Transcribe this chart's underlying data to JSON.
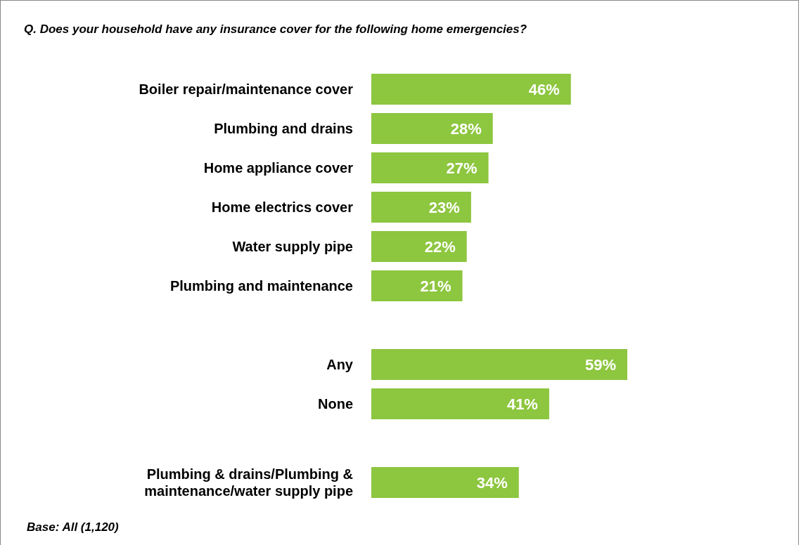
{
  "chart_data": {
    "type": "bar",
    "orientation": "horizontal",
    "title": "Q. Does your household have any insurance cover for the following home emergencies?",
    "categories": [
      "Boiler repair/maintenance cover",
      "Plumbing and drains",
      "Home appliance cover",
      "Home electrics cover",
      "Water supply pipe",
      "Plumbing and maintenance",
      null,
      "Any",
      "None",
      null,
      "Plumbing & drains/Plumbing & maintenance/water supply pipe"
    ],
    "values": [
      46,
      28,
      27,
      23,
      22,
      21,
      null,
      59,
      41,
      null,
      34
    ],
    "value_labels": [
      "46%",
      "28%",
      "27%",
      "23%",
      "22%",
      "21%",
      null,
      "59%",
      "41%",
      null,
      "34%"
    ],
    "color": "#8dc63f",
    "annotations": [
      "Base: All (1,120)"
    ]
  }
}
